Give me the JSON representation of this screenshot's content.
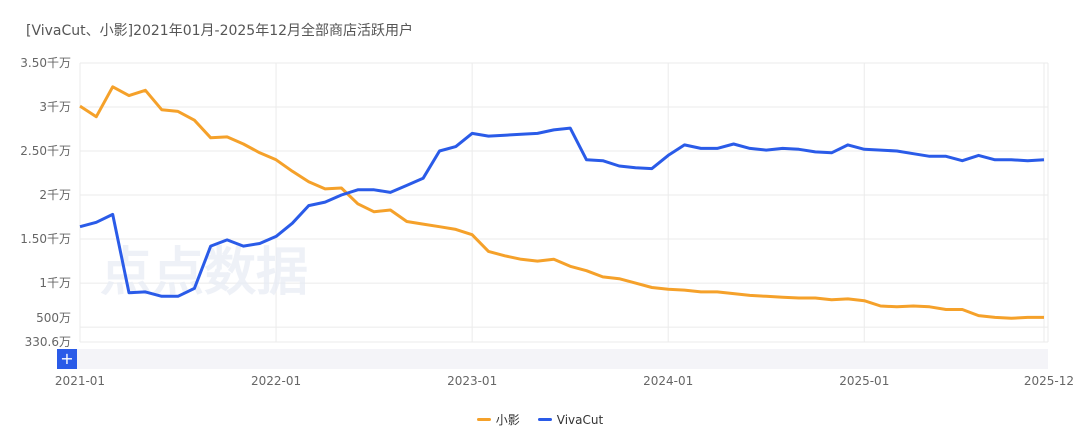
{
  "title": "[VivaCut、小影]2021年01月-2025年12月全部商店活跃用户",
  "watermark": "点点数据",
  "slider": {
    "button_label": "+"
  },
  "chart_data": {
    "type": "line",
    "title": "[VivaCut、小影]2021年01月-2025年12月全部商店活跃用户",
    "unit": "千万",
    "ylim": [
      0.3306,
      3.5
    ],
    "ytick_values": [
      3.5,
      3.0,
      2.5,
      2.0,
      1.5,
      1.0,
      0.5,
      0.3306
    ],
    "ytick_labels": [
      "3.50千万",
      "3千万",
      "2.50千万",
      "2千万",
      "1.50千万",
      "1千万",
      "500万",
      "330.6万"
    ],
    "xtick_index": [
      0,
      12,
      24,
      36,
      48,
      59
    ],
    "xtick_labels": [
      "2021-01",
      "2022-01",
      "2023-01",
      "2024-01",
      "2025-01",
      "2025-12"
    ],
    "x_start": "2021-01",
    "x_count": 60,
    "grid": true,
    "legend_position": "bottom-center",
    "series": [
      {
        "name": "小影",
        "color": "#f5a12a",
        "values": [
          3.01,
          2.89,
          3.23,
          3.13,
          3.19,
          2.97,
          2.95,
          2.85,
          2.65,
          2.66,
          2.58,
          2.48,
          2.4,
          2.27,
          2.15,
          2.07,
          2.08,
          1.9,
          1.81,
          1.83,
          1.7,
          1.67,
          1.64,
          1.61,
          1.55,
          1.36,
          1.31,
          1.27,
          1.25,
          1.27,
          1.19,
          1.14,
          1.07,
          1.05,
          1.0,
          0.95,
          0.93,
          0.92,
          0.9,
          0.9,
          0.88,
          0.86,
          0.85,
          0.84,
          0.83,
          0.83,
          0.81,
          0.82,
          0.8,
          0.74,
          0.73,
          0.74,
          0.73,
          0.7,
          0.7,
          0.63,
          0.61,
          0.6,
          0.61,
          0.61
        ]
      },
      {
        "name": "VivaCut",
        "color": "#2a5be8",
        "values": [
          1.64,
          1.69,
          1.78,
          0.89,
          0.9,
          0.85,
          0.85,
          0.94,
          1.42,
          1.49,
          1.42,
          1.45,
          1.53,
          1.68,
          1.88,
          1.92,
          2.0,
          2.06,
          2.06,
          2.03,
          2.11,
          2.19,
          2.5,
          2.55,
          2.7,
          2.67,
          2.68,
          2.69,
          2.7,
          2.74,
          2.76,
          2.4,
          2.39,
          2.33,
          2.31,
          2.3,
          2.45,
          2.57,
          2.53,
          2.53,
          2.58,
          2.53,
          2.51,
          2.53,
          2.52,
          2.49,
          2.48,
          2.57,
          2.52,
          2.51,
          2.5,
          2.47,
          2.44,
          2.44,
          2.39,
          2.45,
          2.4,
          2.4,
          2.39,
          2.4
        ]
      }
    ]
  }
}
